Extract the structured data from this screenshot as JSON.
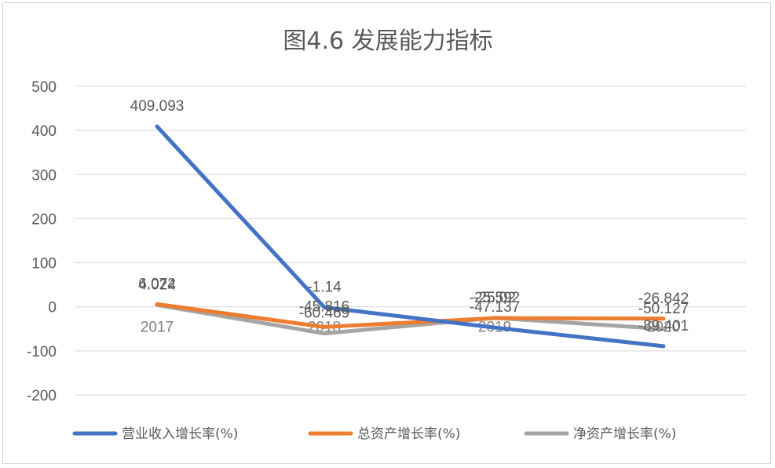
{
  "chart_data": {
    "type": "line",
    "title": "图4.6 发展能力指标",
    "categories": [
      "2017",
      "2018",
      "2019",
      "2020"
    ],
    "ylim": [
      -200,
      500
    ],
    "yticks": [
      500,
      400,
      300,
      200,
      100,
      0,
      -100,
      -200
    ],
    "grid": true,
    "legend_position": "bottom",
    "series": [
      {
        "name": "营业收入增长率(%)",
        "color": "#4472c4",
        "values": [
          409.093,
          -1.14,
          -47.137,
          -89.401
        ],
        "labels": [
          "409.093",
          "-1.14",
          "-47.137",
          "-89.401"
        ]
      },
      {
        "name": "总资产增长率(%)",
        "color": "#ed7d31",
        "values": [
          6.072,
          -45.816,
          -25.592,
          -26.842
        ],
        "labels": [
          "6.072",
          "-45.816",
          "-25.592",
          "-26.842"
        ]
      },
      {
        "name": "净资产增长率(%)",
        "color": "#a5a5a5",
        "values": [
          4.024,
          -60.469,
          -25.02,
          -50.127
        ],
        "labels": [
          "4.024",
          "-60.469",
          "-25.02",
          "-50.127"
        ]
      }
    ]
  }
}
